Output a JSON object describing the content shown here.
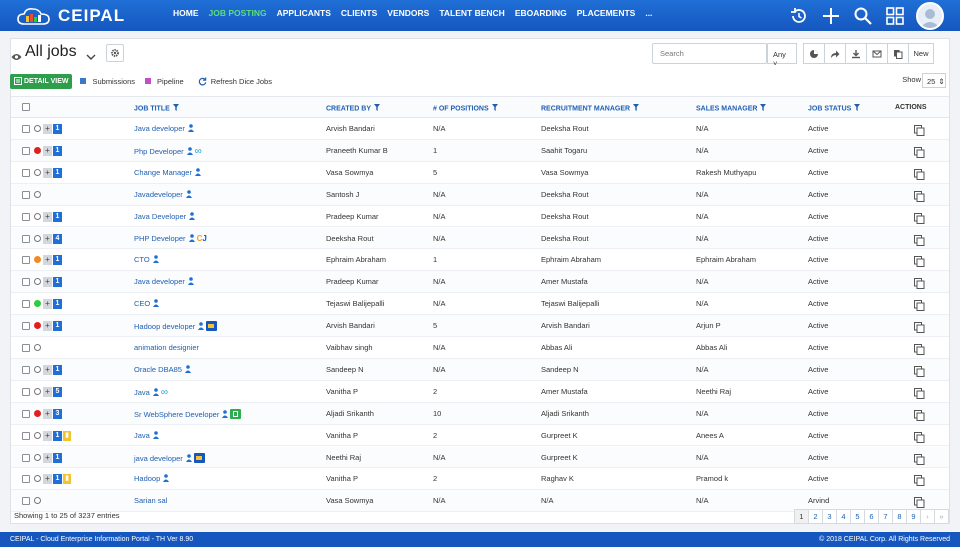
{
  "header": {
    "logo_text": "CEIPAL",
    "nav": [
      "HOME",
      "JOB POSTING",
      "APPLICANTS",
      "CLIENTS",
      "VENDORS",
      "TALENT BENCH",
      "EBOARDING",
      "PLACEMENTS",
      "..."
    ],
    "active_nav": "JOB POSTING",
    "icons": [
      "history-icon",
      "plus-icon",
      "search-icon",
      "grid-icon",
      "avatar"
    ]
  },
  "toolbar": {
    "title": "All jobs",
    "search_placeholder": "Search",
    "any_label": "Any",
    "new_label": "New",
    "tools": [
      "pie-chart-icon",
      "share-icon",
      "download-icon",
      "mail-icon",
      "copy-icon"
    ]
  },
  "subbar": {
    "detail_view": "DETAIL VIEW",
    "submissions": "Submissions",
    "pipeline": "Pipeline",
    "refresh": "Refresh Dice Jobs",
    "show_label": "Show",
    "show_value": "25"
  },
  "colors": {
    "submissions": "#3a78c9",
    "pipeline": "#c24fc8",
    "brand": "#1f6fd6",
    "active_nav": "#5cdf7a"
  },
  "table": {
    "headers": {
      "job_title": "JOB TITLE",
      "created_by": "CREATED BY",
      "positions": "# OF POSITIONS",
      "recruitment_manager": "RECRUITMENT MANAGER",
      "sales_manager": "SALES MANAGER",
      "job_status": "JOB STATUS",
      "actions": "ACTIONS"
    },
    "rows": [
      {
        "dot": "",
        "count": "1",
        "bag": false,
        "title": "Java developer",
        "extra": "",
        "created_by": "Arvish Bandari",
        "positions": "N/A",
        "recruitment_manager": "Deeksha Rout",
        "sales_manager": "N/A",
        "status": "Active"
      },
      {
        "dot": "#e02020",
        "count": "1",
        "bag": false,
        "title": "Php Developer",
        "extra": "infinity",
        "created_by": "Praneeth Kumar B",
        "positions": "1",
        "recruitment_manager": "Saahit Togaru",
        "sales_manager": "N/A",
        "status": "Active"
      },
      {
        "dot": "",
        "count": "1",
        "bag": false,
        "title": "Change Manager",
        "extra": "",
        "created_by": "Vasa Sowmya",
        "positions": "5",
        "recruitment_manager": "Vasa Sowmya",
        "sales_manager": "Rakesh Muthyapu",
        "status": "Active"
      },
      {
        "dot": "",
        "count": "",
        "bag": false,
        "title": "Javadeveloper",
        "extra": "",
        "created_by": "Santosh J",
        "positions": "N/A",
        "recruitment_manager": "Deeksha Rout",
        "sales_manager": "N/A",
        "status": "Active"
      },
      {
        "dot": "",
        "count": "1",
        "bag": false,
        "title": "Java Developer",
        "extra": "",
        "created_by": "Pradeep Kumar",
        "positions": "N/A",
        "recruitment_manager": "Deeksha Rout",
        "sales_manager": "N/A",
        "status": "Active"
      },
      {
        "dot": "",
        "count": "4",
        "bag": false,
        "title": "PHP Developer",
        "extra": "cj",
        "created_by": "Deeksha Rout",
        "positions": "N/A",
        "recruitment_manager": "Deeksha Rout",
        "sales_manager": "N/A",
        "status": "Active"
      },
      {
        "dot": "#f08a24",
        "count": "1",
        "bag": false,
        "title": "CTO",
        "extra": "",
        "created_by": "Ephraim Abraham",
        "positions": "1",
        "recruitment_manager": "Ephraim Abraham",
        "sales_manager": "Ephraim Abraham",
        "status": "Active"
      },
      {
        "dot": "",
        "count": "1",
        "bag": false,
        "title": "Java developer",
        "extra": "",
        "created_by": "Pradeep Kumar",
        "positions": "N/A",
        "recruitment_manager": "Amer Mustafa",
        "sales_manager": "N/A",
        "status": "Active"
      },
      {
        "dot": "#2ecc40",
        "count": "1",
        "bag": false,
        "title": "CEO",
        "extra": "",
        "created_by": "Tejaswi Balijepalli",
        "positions": "N/A",
        "recruitment_manager": "Tejaswi Balijepalli",
        "sales_manager": "N/A",
        "status": "Active"
      },
      {
        "dot": "#e02020",
        "count": "1",
        "bag": false,
        "title": "Hadoop developer",
        "extra": "img",
        "created_by": "Arvish Bandari",
        "positions": "5",
        "recruitment_manager": "Arvish Bandari",
        "sales_manager": "Arjun P",
        "status": "Active"
      },
      {
        "dot": "",
        "count": "",
        "bag": false,
        "title": "animation designier",
        "extra": "nouser",
        "created_by": "Vaibhav singh",
        "positions": "N/A",
        "recruitment_manager": "Abbas Ali",
        "sales_manager": "Abbas Ali",
        "status": "Active"
      },
      {
        "dot": "",
        "count": "1",
        "bag": false,
        "title": "Oracle DBA85",
        "extra": "",
        "created_by": "Sandeep N",
        "positions": "N/A",
        "recruitment_manager": "Sandeep N",
        "sales_manager": "N/A",
        "status": "Active"
      },
      {
        "dot": "",
        "count": "5",
        "bag": false,
        "title": "Java",
        "extra": "infinity",
        "created_by": "Vanitha P",
        "positions": "2",
        "recruitment_manager": "Amer Mustafa",
        "sales_manager": "Neethi Raj",
        "status": "Active"
      },
      {
        "dot": "#e02020",
        "count": "3",
        "bag": false,
        "title": "Sr WebSphere Developer",
        "extra": "green",
        "created_by": "Aljadi Srikanth",
        "positions": "10",
        "recruitment_manager": "Aljadi Srikanth",
        "sales_manager": "N/A",
        "status": "Active"
      },
      {
        "dot": "",
        "count": "1",
        "bag": true,
        "title": "Java",
        "extra": "",
        "created_by": "Vanitha P",
        "positions": "2",
        "recruitment_manager": "Gurpreet K",
        "sales_manager": "Anees A",
        "status": "Active"
      },
      {
        "dot": "",
        "count": "1",
        "bag": false,
        "title": "java developer",
        "extra": "img",
        "created_by": "Neethi Raj",
        "positions": "N/A",
        "recruitment_manager": "Gurpreet K",
        "sales_manager": "N/A",
        "status": "Active"
      },
      {
        "dot": "",
        "count": "1",
        "bag": true,
        "title": "Hadoop",
        "extra": "",
        "created_by": "Vanitha P",
        "positions": "2",
        "recruitment_manager": "Raghav K",
        "sales_manager": "Pramod k",
        "status": "Active"
      },
      {
        "dot": "",
        "count": "",
        "bag": false,
        "title": "Sarian sal",
        "extra": "nouser",
        "created_by": "Vasa Sowmya",
        "positions": "N/A",
        "recruitment_manager": "N/A",
        "sales_manager": "N/A",
        "status": "Arvind"
      }
    ]
  },
  "footer": {
    "showing": "Showing 1 to 25 of 3237 entries",
    "pages": [
      "1",
      "2",
      "3",
      "4",
      "5",
      "6",
      "7",
      "8",
      "9"
    ],
    "current_page": "1",
    "left": "CEIPAL - Cloud Enterprise Information Portal - TH Ver 8.90",
    "right": "© 2018 CEIPAL Corp. All Rights Reserved"
  }
}
